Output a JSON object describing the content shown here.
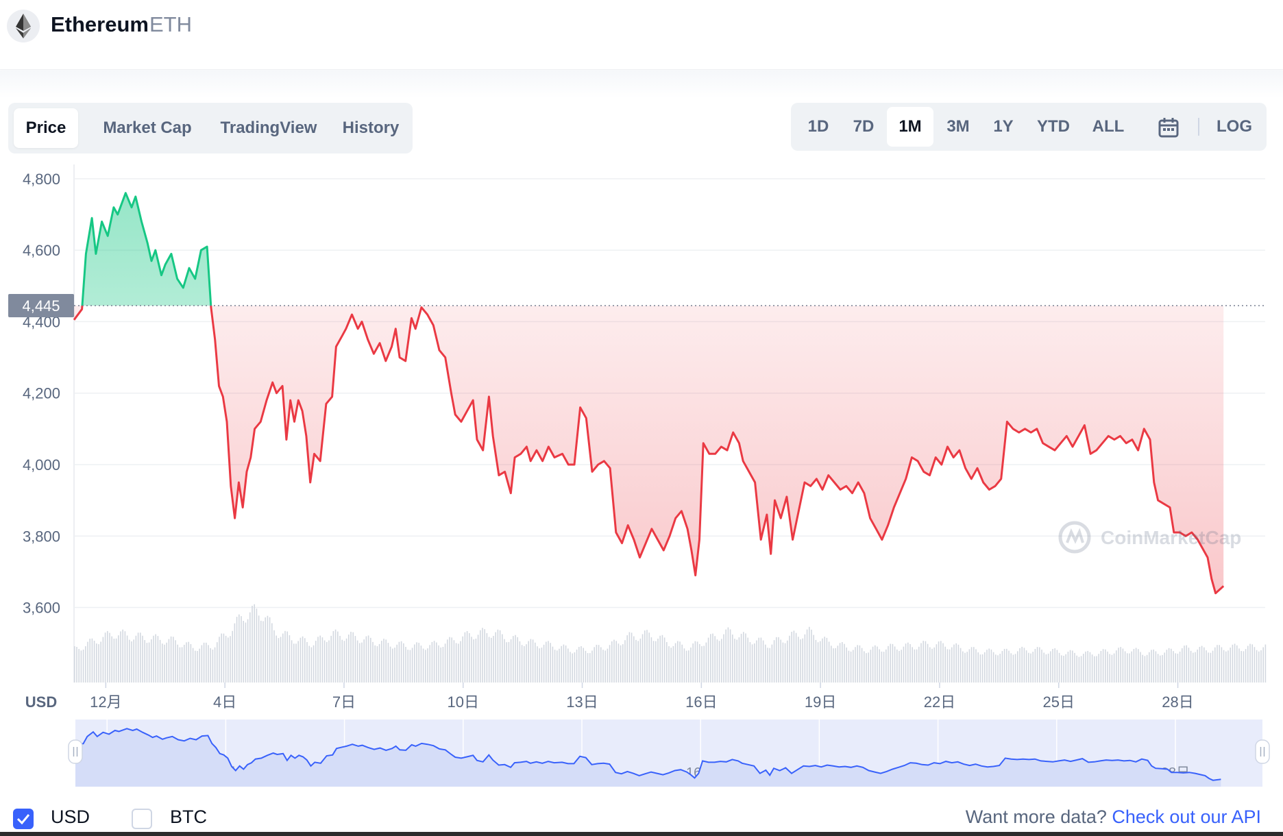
{
  "header": {
    "coin_name": "Ethereum",
    "coin_symbol": "ETH",
    "logo_icon": "ethereum-logo-icon"
  },
  "tabs": [
    {
      "label": "Price",
      "active": true
    },
    {
      "label": "Market Cap",
      "active": false
    },
    {
      "label": "TradingView",
      "active": false
    },
    {
      "label": "History",
      "active": false
    }
  ],
  "ranges": [
    {
      "label": "1D",
      "active": false
    },
    {
      "label": "7D",
      "active": false
    },
    {
      "label": "1M",
      "active": true
    },
    {
      "label": "3M",
      "active": false
    },
    {
      "label": "1Y",
      "active": false
    },
    {
      "label": "YTD",
      "active": false
    },
    {
      "label": "ALL",
      "active": false
    }
  ],
  "calendar_icon": "calendar-icon",
  "log_label": "LOG",
  "chart_data": {
    "type": "area",
    "currency_label": "USD",
    "reference_label": "4,445",
    "reference_value": 4445,
    "y_ticks": [
      "4,800",
      "4,600",
      "4,400",
      "4,200",
      "4,000",
      "3,800",
      "3,600"
    ],
    "y_tick_values": [
      4800,
      4600,
      4400,
      4200,
      4000,
      3800,
      3600
    ],
    "ylim": [
      3555,
      4840
    ],
    "x_ticks": [
      "12月",
      "4日",
      "7日",
      "10日",
      "13日",
      "16日",
      "19日",
      "22日",
      "25日",
      "28日"
    ],
    "x_tick_days": [
      0.8,
      3.8,
      6.8,
      9.8,
      12.8,
      15.8,
      18.8,
      21.8,
      24.8,
      27.8
    ],
    "xlim_days": [
      0,
      30
    ],
    "above_color": "#16c784",
    "below_color": "#ea3943",
    "watermark": "CoinMarketCap",
    "series": [
      {
        "values": [
          [
            0.0,
            4405
          ],
          [
            0.2,
            4435
          ],
          [
            0.3,
            4590
          ],
          [
            0.45,
            4690
          ],
          [
            0.55,
            4590
          ],
          [
            0.7,
            4680
          ],
          [
            0.85,
            4640
          ],
          [
            1.0,
            4720
          ],
          [
            1.1,
            4700
          ],
          [
            1.3,
            4760
          ],
          [
            1.45,
            4720
          ],
          [
            1.55,
            4750
          ],
          [
            1.7,
            4680
          ],
          [
            1.85,
            4620
          ],
          [
            1.95,
            4570
          ],
          [
            2.05,
            4600
          ],
          [
            2.2,
            4530
          ],
          [
            2.3,
            4560
          ],
          [
            2.45,
            4590
          ],
          [
            2.6,
            4520
          ],
          [
            2.75,
            4495
          ],
          [
            2.9,
            4550
          ],
          [
            3.05,
            4520
          ],
          [
            3.2,
            4600
          ],
          [
            3.35,
            4610
          ],
          [
            3.45,
            4440
          ],
          [
            3.55,
            4350
          ],
          [
            3.65,
            4220
          ],
          [
            3.75,
            4190
          ],
          [
            3.85,
            4120
          ],
          [
            3.95,
            3940
          ],
          [
            4.05,
            3850
          ],
          [
            4.15,
            3950
          ],
          [
            4.25,
            3880
          ],
          [
            4.35,
            3980
          ],
          [
            4.45,
            4020
          ],
          [
            4.55,
            4100
          ],
          [
            4.7,
            4120
          ],
          [
            4.85,
            4180
          ],
          [
            5.0,
            4230
          ],
          [
            5.1,
            4200
          ],
          [
            5.25,
            4220
          ],
          [
            5.35,
            4070
          ],
          [
            5.45,
            4180
          ],
          [
            5.55,
            4120
          ],
          [
            5.65,
            4180
          ],
          [
            5.75,
            4150
          ],
          [
            5.85,
            4080
          ],
          [
            5.95,
            3950
          ],
          [
            6.05,
            4030
          ],
          [
            6.2,
            4010
          ],
          [
            6.35,
            4170
          ],
          [
            6.5,
            4190
          ],
          [
            6.6,
            4330
          ],
          [
            6.75,
            4360
          ],
          [
            6.85,
            4380
          ],
          [
            7.0,
            4420
          ],
          [
            7.15,
            4380
          ],
          [
            7.25,
            4400
          ],
          [
            7.4,
            4350
          ],
          [
            7.55,
            4310
          ],
          [
            7.7,
            4340
          ],
          [
            7.85,
            4290
          ],
          [
            8.0,
            4330
          ],
          [
            8.1,
            4380
          ],
          [
            8.2,
            4300
          ],
          [
            8.35,
            4290
          ],
          [
            8.5,
            4410
          ],
          [
            8.6,
            4380
          ],
          [
            8.75,
            4440
          ],
          [
            8.9,
            4420
          ],
          [
            9.05,
            4390
          ],
          [
            9.2,
            4320
          ],
          [
            9.35,
            4300
          ],
          [
            9.5,
            4200
          ],
          [
            9.6,
            4140
          ],
          [
            9.75,
            4120
          ],
          [
            9.9,
            4150
          ],
          [
            10.05,
            4180
          ],
          [
            10.15,
            4070
          ],
          [
            10.3,
            4040
          ],
          [
            10.45,
            4190
          ],
          [
            10.55,
            4080
          ],
          [
            10.7,
            3970
          ],
          [
            10.85,
            3980
          ],
          [
            11.0,
            3920
          ],
          [
            11.1,
            4020
          ],
          [
            11.25,
            4030
          ],
          [
            11.4,
            4050
          ],
          [
            11.5,
            4010
          ],
          [
            11.65,
            4040
          ],
          [
            11.8,
            4010
          ],
          [
            11.95,
            4050
          ],
          [
            12.1,
            4020
          ],
          [
            12.3,
            4030
          ],
          [
            12.45,
            4000
          ],
          [
            12.6,
            4000
          ],
          [
            12.75,
            4160
          ],
          [
            12.9,
            4130
          ],
          [
            13.05,
            3980
          ],
          [
            13.2,
            4000
          ],
          [
            13.35,
            4010
          ],
          [
            13.5,
            3990
          ],
          [
            13.65,
            3810
          ],
          [
            13.8,
            3780
          ],
          [
            13.95,
            3830
          ],
          [
            14.1,
            3790
          ],
          [
            14.25,
            3740
          ],
          [
            14.4,
            3780
          ],
          [
            14.55,
            3820
          ],
          [
            14.7,
            3790
          ],
          [
            14.85,
            3760
          ],
          [
            15.0,
            3800
          ],
          [
            15.15,
            3850
          ],
          [
            15.3,
            3870
          ],
          [
            15.45,
            3820
          ],
          [
            15.55,
            3760
          ],
          [
            15.65,
            3690
          ],
          [
            15.75,
            3790
          ],
          [
            15.85,
            4060
          ],
          [
            16.0,
            4030
          ],
          [
            16.15,
            4030
          ],
          [
            16.3,
            4050
          ],
          [
            16.45,
            4040
          ],
          [
            16.6,
            4090
          ],
          [
            16.75,
            4060
          ],
          [
            16.85,
            4010
          ],
          [
            17.0,
            3980
          ],
          [
            17.15,
            3950
          ],
          [
            17.3,
            3790
          ],
          [
            17.45,
            3860
          ],
          [
            17.55,
            3750
          ],
          [
            17.65,
            3900
          ],
          [
            17.8,
            3850
          ],
          [
            17.95,
            3910
          ],
          [
            18.1,
            3790
          ],
          [
            18.25,
            3870
          ],
          [
            18.4,
            3950
          ],
          [
            18.55,
            3940
          ],
          [
            18.7,
            3960
          ],
          [
            18.85,
            3930
          ],
          [
            19.0,
            3970
          ],
          [
            19.15,
            3950
          ],
          [
            19.3,
            3930
          ],
          [
            19.45,
            3940
          ],
          [
            19.6,
            3920
          ],
          [
            19.75,
            3950
          ],
          [
            19.9,
            3920
          ],
          [
            20.05,
            3850
          ],
          [
            20.2,
            3820
          ],
          [
            20.35,
            3790
          ],
          [
            20.5,
            3830
          ],
          [
            20.65,
            3880
          ],
          [
            20.8,
            3920
          ],
          [
            20.95,
            3960
          ],
          [
            21.1,
            4020
          ],
          [
            21.25,
            4010
          ],
          [
            21.4,
            3980
          ],
          [
            21.55,
            3970
          ],
          [
            21.7,
            4020
          ],
          [
            21.85,
            4000
          ],
          [
            22.0,
            4050
          ],
          [
            22.15,
            4020
          ],
          [
            22.3,
            4040
          ],
          [
            22.45,
            3990
          ],
          [
            22.6,
            3960
          ],
          [
            22.75,
            3990
          ],
          [
            22.9,
            3950
          ],
          [
            23.05,
            3930
          ],
          [
            23.2,
            3940
          ],
          [
            23.35,
            3960
          ],
          [
            23.5,
            4120
          ],
          [
            23.65,
            4100
          ],
          [
            23.8,
            4090
          ],
          [
            23.95,
            4100
          ],
          [
            24.1,
            4090
          ],
          [
            24.25,
            4100
          ],
          [
            24.4,
            4060
          ],
          [
            24.55,
            4050
          ],
          [
            24.7,
            4040
          ],
          [
            24.85,
            4060
          ],
          [
            25.0,
            4080
          ],
          [
            25.15,
            4050
          ],
          [
            25.3,
            4080
          ],
          [
            25.45,
            4110
          ],
          [
            25.6,
            4030
          ],
          [
            25.75,
            4040
          ],
          [
            25.9,
            4060
          ],
          [
            26.05,
            4080
          ],
          [
            26.2,
            4070
          ],
          [
            26.35,
            4080
          ],
          [
            26.5,
            4060
          ],
          [
            26.65,
            4070
          ],
          [
            26.8,
            4040
          ],
          [
            26.95,
            4100
          ],
          [
            27.1,
            4070
          ],
          [
            27.2,
            3950
          ],
          [
            27.3,
            3900
          ],
          [
            27.45,
            3890
          ],
          [
            27.6,
            3880
          ],
          [
            27.7,
            3810
          ],
          [
            27.85,
            3810
          ],
          [
            28.0,
            3800
          ],
          [
            28.15,
            3810
          ],
          [
            28.3,
            3790
          ],
          [
            28.45,
            3760
          ],
          [
            28.55,
            3740
          ],
          [
            28.65,
            3680
          ],
          [
            28.75,
            3640
          ],
          [
            28.85,
            3650
          ],
          [
            28.95,
            3660
          ]
        ]
      }
    ],
    "volume": {
      "days": [
        0.0,
        0.5,
        1.0,
        1.5,
        2.0,
        2.5,
        3.0,
        3.5,
        4.0,
        4.2,
        4.5,
        4.8,
        5.0,
        5.5,
        6.0,
        6.5,
        7.0,
        7.5,
        8.0,
        8.5,
        9.0,
        9.5,
        10.0,
        10.5,
        11.0,
        11.5,
        12.0,
        12.5,
        13.0,
        13.5,
        14.0,
        14.5,
        15.0,
        15.5,
        16.0,
        16.5,
        17.0,
        17.5,
        18.0,
        18.5,
        19.0,
        19.5,
        20.0,
        20.5,
        21.0,
        21.5,
        22.0,
        22.5,
        23.0,
        23.5,
        24.0,
        24.5,
        25.0,
        25.5,
        26.0,
        26.5,
        27.0,
        27.5,
        28.0,
        28.5,
        29.0
      ],
      "values": [
        30,
        38,
        45,
        42,
        40,
        38,
        32,
        34,
        50,
        60,
        65,
        62,
        48,
        40,
        36,
        44,
        42,
        38,
        35,
        33,
        34,
        38,
        44,
        46,
        40,
        36,
        34,
        30,
        30,
        34,
        42,
        44,
        36,
        32,
        40,
        46,
        40,
        35,
        42,
        46,
        36,
        32,
        30,
        32,
        33,
        35,
        34,
        30,
        28,
        28,
        30,
        29,
        27,
        26,
        28,
        30,
        27,
        28,
        31,
        30,
        32
      ]
    },
    "navigator": {
      "x_ticks": [
        "12月",
        "4日",
        "7日",
        "10日",
        "13日",
        "16日",
        "19日",
        "22日",
        "25日",
        "28日"
      ],
      "line_color": "#3861fb"
    }
  },
  "footer": {
    "usd_label": "USD",
    "usd_checked": true,
    "btc_label": "BTC",
    "btc_checked": false,
    "api_text": "Want more data?",
    "api_link": "Check out our API"
  }
}
